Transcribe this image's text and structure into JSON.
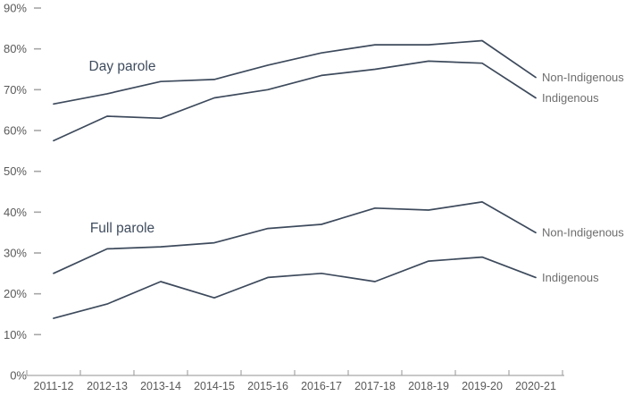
{
  "chart_data": {
    "type": "line",
    "title": "",
    "categories": [
      "2011-12",
      "2012-13",
      "2013-14",
      "2014-15",
      "2015-16",
      "2016-17",
      "2017-18",
      "2018-19",
      "2019-20",
      "2020-21"
    ],
    "y_axis": {
      "tick_labels": [
        "90%",
        "80%",
        "70%",
        "60%",
        "50%",
        "40%",
        "30%",
        "20%",
        "10%",
        "0%"
      ],
      "tick_values": [
        90,
        80,
        70,
        60,
        50,
        40,
        30,
        20,
        10,
        0
      ],
      "min": 0,
      "max": 90,
      "grid": false
    },
    "legend_position": "line-end-right",
    "groups": [
      {
        "label": "Day parole",
        "series": [
          {
            "name": "Non-Indigenous",
            "values": [
              66.5,
              69,
              72,
              72.5,
              76,
              79,
              81,
              81,
              82,
              73
            ]
          },
          {
            "name": "Indigenous",
            "values": [
              57.5,
              63.5,
              63,
              68,
              70,
              73.5,
              75,
              77,
              76.5,
              68
            ]
          }
        ]
      },
      {
        "label": "Full parole",
        "series": [
          {
            "name": "Non-Indigenous",
            "values": [
              25,
              31,
              31.5,
              32.5,
              36,
              37,
              41,
              40.5,
              42.5,
              35
            ]
          },
          {
            "name": "Indigenous",
            "values": [
              14,
              17.5,
              23,
              19,
              24,
              25,
              23,
              28,
              29,
              24
            ]
          }
        ]
      }
    ],
    "colors": {
      "line": "#3d4a5c",
      "group_label": "#3f4c5e",
      "axis_line": "#a6a6a6",
      "tick_dash": "#a6a6a6",
      "axis_tick_label": "#595959",
      "series_label": "#6e6e6e",
      "background": "#ffffff"
    }
  }
}
